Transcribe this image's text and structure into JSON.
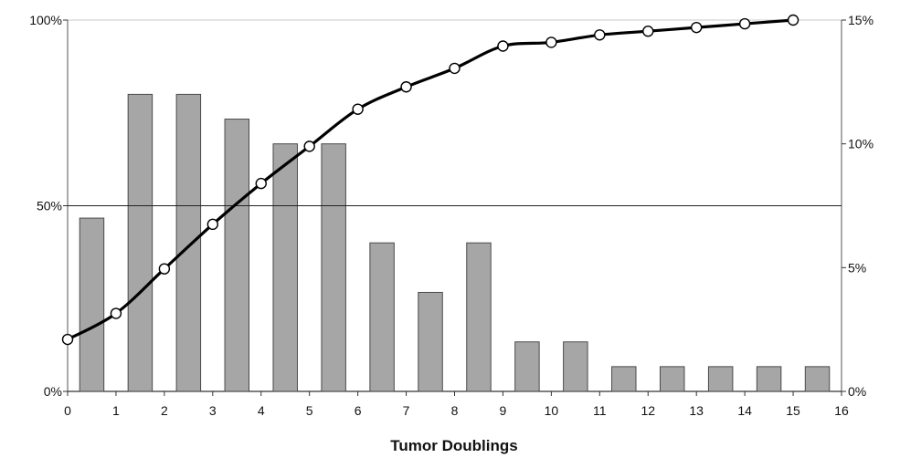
{
  "chart_data": {
    "type": "bar",
    "xlabel": "Tumor Doublings",
    "ylabel": "",
    "x_ticks": [
      "0",
      "1",
      "2",
      "3",
      "4",
      "5",
      "6",
      "7",
      "8",
      "9",
      "10",
      "11",
      "12",
      "13",
      "14",
      "15",
      "16"
    ],
    "xlim": [
      0,
      16
    ],
    "y_left": {
      "ylim": [
        0,
        100
      ],
      "ticks": [
        "0%",
        "50%",
        "100%"
      ]
    },
    "y_right": {
      "ylim": [
        0,
        15
      ],
      "ticks": [
        "0%",
        "5%",
        "10%",
        "15%"
      ]
    },
    "reference_line": {
      "axis": "left",
      "value": 50
    },
    "grid": false,
    "series": [
      {
        "type": "bar",
        "axis": "right",
        "x": [
          0.5,
          1.5,
          2.5,
          3.5,
          4.5,
          5.5,
          6.5,
          7.5,
          8.5,
          9.5,
          10.5,
          11.5,
          12.5,
          13.5,
          14.5,
          15.5
        ],
        "values": [
          7,
          12,
          12,
          11,
          10,
          10,
          6,
          4,
          6,
          2,
          2,
          1,
          1,
          1,
          1,
          1
        ],
        "color": "#a6a6a6"
      },
      {
        "type": "line",
        "axis": "left",
        "x": [
          0,
          1,
          2,
          3,
          4,
          5,
          6,
          7,
          8,
          9,
          10,
          11,
          12,
          13,
          14,
          15
        ],
        "values": [
          14,
          21,
          33,
          45,
          56,
          66,
          76,
          82,
          87,
          93,
          94,
          96,
          97,
          98,
          99,
          100
        ],
        "color": "#000000"
      }
    ]
  }
}
